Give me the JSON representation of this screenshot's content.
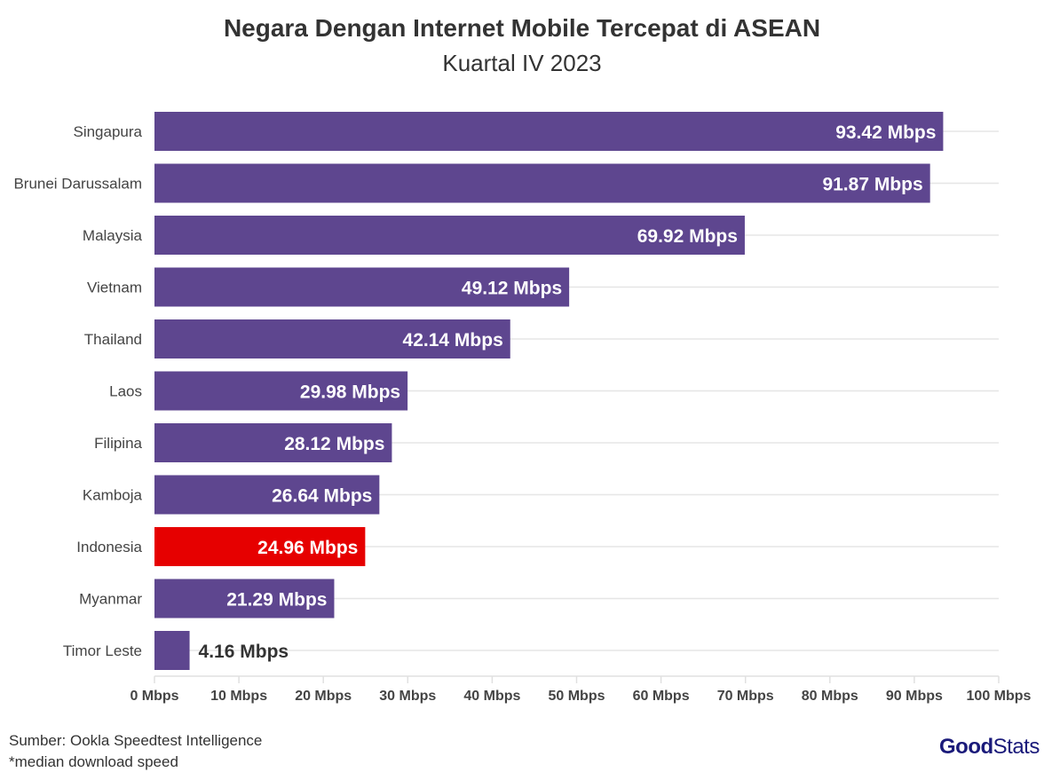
{
  "chart_data": {
    "type": "bar",
    "orientation": "horizontal",
    "title": "Negara Dengan Internet Mobile Tercepat di ASEAN",
    "subtitle": "Kuartal IV 2023",
    "categories": [
      "Singapura",
      "Brunei Darussalam",
      "Malaysia",
      "Vietnam",
      "Thailand",
      "Laos",
      "Filipina",
      "Kamboja",
      "Indonesia",
      "Myanmar",
      "Timor Leste"
    ],
    "values": [
      93.42,
      91.87,
      69.92,
      49.12,
      42.14,
      29.98,
      28.12,
      26.64,
      24.96,
      21.29,
      4.16
    ],
    "data_labels": [
      "93.42 Mbps",
      "91.87 Mbps",
      "69.92 Mbps",
      "49.12 Mbps",
      "42.14 Mbps",
      "29.98 Mbps",
      "28.12 Mbps",
      "26.64 Mbps",
      "24.96 Mbps",
      "21.29 Mbps",
      "4.16 Mbps"
    ],
    "xlim": [
      0,
      100
    ],
    "x_ticks": [
      "0 Mbps",
      "10 Mbps",
      "20 Mbps",
      "30 Mbps",
      "40 Mbps",
      "50 Mbps",
      "60 Mbps",
      "70 Mbps",
      "80 Mbps",
      "90 Mbps",
      "100 Mbps"
    ],
    "highlight": "Indonesia",
    "colors": {
      "bar": "#5e468f",
      "highlight": "#e60000"
    },
    "grid": true
  },
  "footer": {
    "source": "Sumber: Ookla Speedtest Intelligence",
    "note": "*median download speed"
  },
  "logo": {
    "bold": "Good",
    "light": "Stats"
  }
}
